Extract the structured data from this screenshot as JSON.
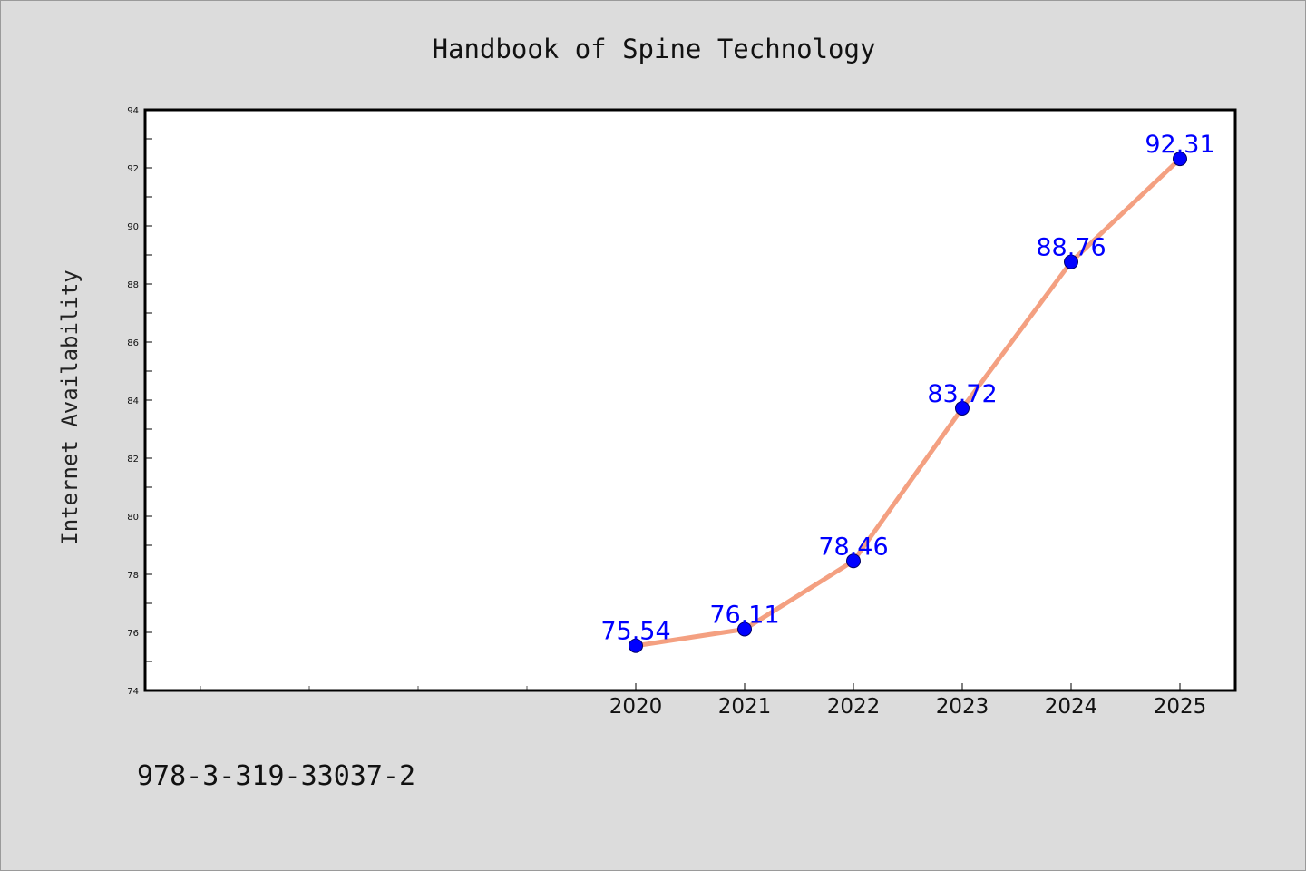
{
  "chart_data": {
    "type": "line",
    "title": "Handbook of Spine Technology",
    "xlabel": "",
    "ylabel": "Internet Availability",
    "categories": [
      "2020",
      "2021",
      "2022",
      "2023",
      "2024",
      "2025"
    ],
    "series": [
      {
        "values": [
          75.54,
          76.11,
          78.46,
          83.72,
          88.76,
          92.31
        ],
        "data_labels": [
          "75.54",
          "76.11",
          "78.46",
          "83.72",
          "88.76",
          "92.31"
        ]
      }
    ],
    "ylim": [
      74,
      94
    ],
    "yticks": [
      74,
      76,
      78,
      80,
      82,
      84,
      86,
      88,
      90,
      92,
      94
    ],
    "grid": false,
    "legend": "none"
  },
  "colors": {
    "line": "#f4a081",
    "marker": "#0000ff",
    "data_label": "#0000ff",
    "background": "#dcdcdc",
    "plot_background": "#ffffff"
  },
  "footer": {
    "text": "978-3-319-33037-2"
  }
}
